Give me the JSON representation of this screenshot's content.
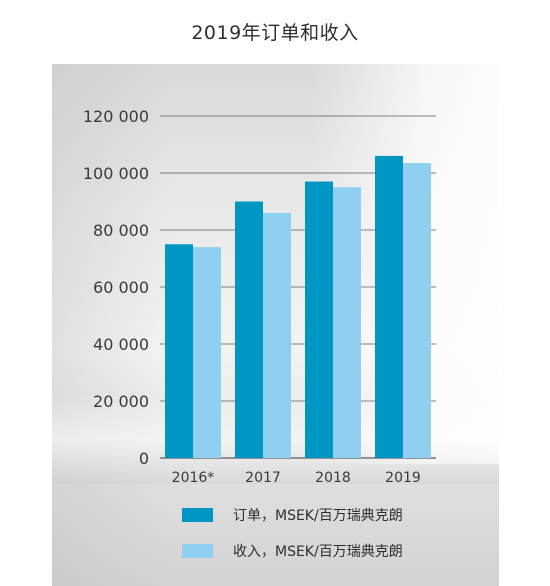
{
  "page": {
    "title": "2019年订单和收入"
  },
  "chart_data": {
    "type": "bar",
    "title": "2019年订单和收入",
    "categories": [
      "2016*",
      "2017",
      "2018",
      "2019"
    ],
    "series": [
      {
        "name": "订单，MSEK/百万瑞典克朗",
        "values": [
          75000,
          90000,
          97000,
          106000
        ],
        "color": "#0096c3"
      },
      {
        "name": "收入，MSEK/百万瑞典克朗",
        "values": [
          74000,
          86000,
          95000,
          103500
        ],
        "color": "#8fd0f0"
      }
    ],
    "ylim": [
      0,
      120000
    ],
    "yticks": [
      0,
      20000,
      40000,
      60000,
      80000,
      100000,
      120000
    ],
    "ytick_labels": [
      "0",
      "20 000",
      "40 000",
      "60 000",
      "80 000",
      "100 000",
      "120 000"
    ],
    "grid": true,
    "legend_position": "bottom"
  }
}
